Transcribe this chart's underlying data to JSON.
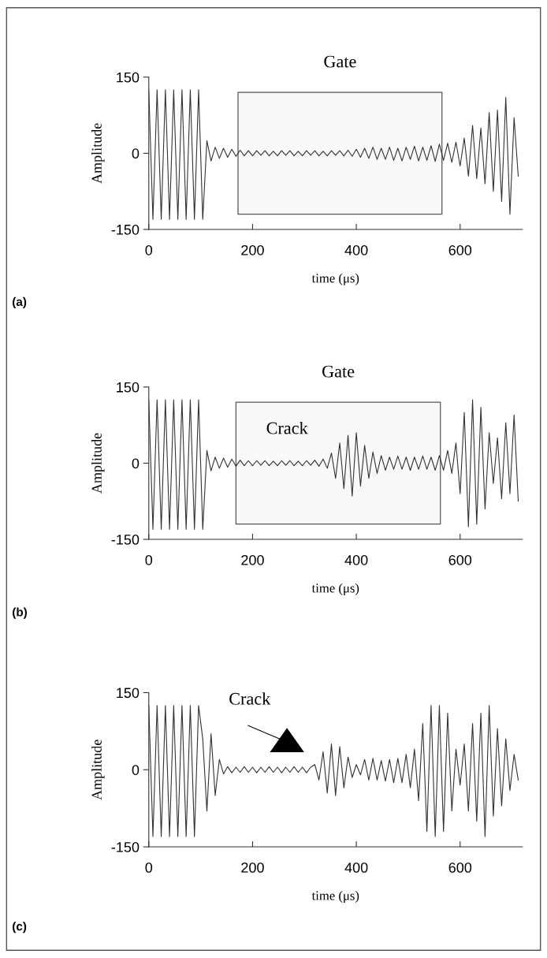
{
  "chart_data": [
    {
      "type": "line",
      "xlabel": "time (μs)",
      "ylabel": "Amplitude",
      "xlim": [
        0,
        720
      ],
      "ylim": [
        -150,
        150
      ],
      "xticks": [
        0,
        200,
        400,
        600
      ],
      "yticks": [
        -150,
        0,
        150
      ],
      "grid": false,
      "x": [
        0,
        8,
        16,
        24,
        32,
        40,
        48,
        56,
        64,
        72,
        80,
        88,
        96,
        104,
        112,
        120,
        128,
        136,
        144,
        152,
        160,
        168,
        176,
        184,
        192,
        200,
        208,
        216,
        224,
        232,
        240,
        248,
        256,
        264,
        272,
        280,
        288,
        296,
        304,
        312,
        320,
        328,
        336,
        344,
        352,
        360,
        368,
        376,
        384,
        392,
        400,
        408,
        416,
        424,
        432,
        440,
        448,
        456,
        464,
        472,
        480,
        488,
        496,
        504,
        512,
        520,
        528,
        536,
        544,
        552,
        560,
        568,
        576,
        584,
        592,
        600,
        608,
        616,
        624,
        632,
        640,
        648,
        656,
        664,
        672,
        680,
        688,
        696,
        704,
        712
      ],
      "series": [
        {
          "color": "#333333",
          "values": [
            125,
            -130,
            125,
            -130,
            125,
            -130,
            125,
            -130,
            125,
            -130,
            125,
            -130,
            125,
            -130,
            25,
            -15,
            12,
            -10,
            10,
            -8,
            8,
            -6,
            6,
            -5,
            5,
            -5,
            5,
            -4,
            5,
            -5,
            4,
            -5,
            5,
            -4,
            5,
            -5,
            4,
            -5,
            5,
            -4,
            5,
            -5,
            4,
            -5,
            5,
            -4,
            5,
            -5,
            6,
            -6,
            8,
            -8,
            10,
            -10,
            12,
            -12,
            10,
            -12,
            12,
            -14,
            10,
            -15,
            12,
            -12,
            14,
            -15,
            12,
            -14,
            15,
            -16,
            18,
            -14,
            20,
            -18,
            22,
            -25,
            30,
            -45,
            55,
            -50,
            50,
            -60,
            80,
            -75,
            85,
            -95,
            110,
            -120,
            70,
            -45
          ]
        }
      ],
      "bands": [
        {
          "axis": "x",
          "from": 172,
          "to": 565,
          "label": "Gate"
        }
      ],
      "annotations": [
        "(a)"
      ]
    },
    {
      "type": "line",
      "xlabel": "time (μs)",
      "ylabel": "Amplitude",
      "xlim": [
        0,
        720
      ],
      "ylim": [
        -150,
        150
      ],
      "xticks": [
        0,
        200,
        400,
        600
      ],
      "yticks": [
        -150,
        0,
        150
      ],
      "grid": false,
      "x": [
        0,
        8,
        16,
        24,
        32,
        40,
        48,
        56,
        64,
        72,
        80,
        88,
        96,
        104,
        112,
        120,
        128,
        136,
        144,
        152,
        160,
        168,
        176,
        184,
        192,
        200,
        208,
        216,
        224,
        232,
        240,
        248,
        256,
        264,
        272,
        280,
        288,
        296,
        304,
        312,
        320,
        328,
        336,
        344,
        352,
        360,
        368,
        376,
        384,
        392,
        400,
        408,
        416,
        424,
        432,
        440,
        448,
        456,
        464,
        472,
        480,
        488,
        496,
        504,
        512,
        520,
        528,
        536,
        544,
        552,
        560,
        568,
        576,
        584,
        592,
        600,
        608,
        616,
        624,
        632,
        640,
        648,
        656,
        664,
        672,
        680,
        688,
        696,
        704,
        712
      ],
      "series": [
        {
          "color": "#333333",
          "values": [
            125,
            -130,
            125,
            -130,
            125,
            -130,
            125,
            -130,
            125,
            -130,
            125,
            -130,
            125,
            -130,
            25,
            -15,
            12,
            -10,
            10,
            -8,
            8,
            -6,
            6,
            -5,
            5,
            -5,
            5,
            -4,
            5,
            -5,
            4,
            -5,
            5,
            -4,
            5,
            -5,
            4,
            -5,
            5,
            -4,
            6,
            -6,
            8,
            -10,
            20,
            -30,
            40,
            -50,
            55,
            -65,
            60,
            -45,
            35,
            -30,
            22,
            -20,
            15,
            -14,
            12,
            -12,
            14,
            -12,
            12,
            -14,
            12,
            -12,
            14,
            -12,
            12,
            -14,
            15,
            -14,
            25,
            -20,
            40,
            -60,
            100,
            -125,
            125,
            -120,
            110,
            -90,
            60,
            -40,
            50,
            -70,
            80,
            -60,
            95,
            -75
          ]
        }
      ],
      "bands": [
        {
          "axis": "x",
          "from": 168,
          "to": 562,
          "label": "Gate"
        }
      ],
      "annotations": [
        "(b)",
        "Crack"
      ]
    },
    {
      "type": "line",
      "xlabel": "time (μs)",
      "ylabel": "Amplitude",
      "xlim": [
        0,
        720
      ],
      "ylim": [
        -150,
        150
      ],
      "xticks": [
        0,
        200,
        400,
        600
      ],
      "yticks": [
        -150,
        0,
        150
      ],
      "grid": false,
      "x": [
        0,
        8,
        16,
        24,
        32,
        40,
        48,
        56,
        64,
        72,
        80,
        88,
        96,
        104,
        112,
        120,
        128,
        136,
        144,
        152,
        160,
        168,
        176,
        184,
        192,
        200,
        208,
        216,
        224,
        232,
        240,
        248,
        256,
        264,
        272,
        280,
        288,
        296,
        304,
        312,
        320,
        328,
        336,
        344,
        352,
        360,
        368,
        376,
        384,
        392,
        400,
        408,
        416,
        424,
        432,
        440,
        448,
        456,
        464,
        472,
        480,
        488,
        496,
        504,
        512,
        520,
        528,
        536,
        544,
        552,
        560,
        568,
        576,
        584,
        592,
        600,
        608,
        616,
        624,
        632,
        640,
        648,
        656,
        664,
        672,
        680,
        688,
        696,
        704,
        712
      ],
      "series": [
        {
          "color": "#333333",
          "values": [
            125,
            -130,
            125,
            -130,
            125,
            -130,
            125,
            -130,
            125,
            -130,
            125,
            -130,
            125,
            60,
            -80,
            70,
            -50,
            20,
            -8,
            6,
            -6,
            5,
            -5,
            6,
            -5,
            5,
            -6,
            5,
            -5,
            6,
            -5,
            5,
            -6,
            5,
            -5,
            6,
            -5,
            5,
            -6,
            5,
            10,
            -20,
            35,
            -45,
            50,
            -50,
            45,
            -35,
            25,
            -15,
            10,
            -10,
            20,
            -20,
            22,
            -20,
            18,
            -22,
            20,
            -25,
            22,
            -25,
            30,
            -35,
            40,
            -60,
            90,
            -120,
            125,
            -130,
            125,
            -120,
            110,
            -80,
            40,
            -30,
            50,
            -80,
            90,
            -100,
            110,
            -130,
            125,
            -90,
            80,
            -70,
            60,
            -40,
            30,
            -20
          ]
        }
      ],
      "annotations": [
        "(c)",
        "Crack"
      ]
    }
  ]
}
